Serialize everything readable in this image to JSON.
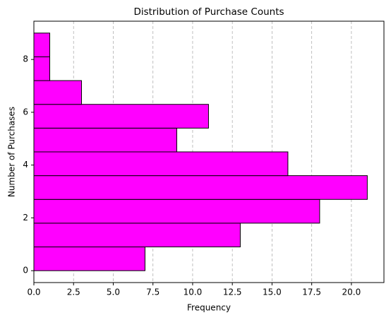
{
  "chart_data": {
    "type": "histogram",
    "orientation": "horizontal",
    "title": "Distribution of Purchase Counts",
    "xlabel": "Frequency",
    "ylabel": "Number of Purchases",
    "bins": [
      0,
      0.9,
      1.8,
      2.7,
      3.6,
      4.5,
      5.4,
      6.3,
      7.2,
      8.1,
      9.0
    ],
    "values": [
      7,
      13,
      18,
      21,
      16,
      9,
      11,
      3,
      1,
      1
    ],
    "color": "#ff00ff",
    "edgecolor": "#000000",
    "xlim": [
      0,
      22.05
    ],
    "ylim": [
      -0.45,
      9.45
    ],
    "xticks": [
      {
        "value": 0,
        "label": "0.0"
      },
      2.5,
      {
        "value": 5,
        "label": "5.0"
      },
      7.5,
      {
        "value": 10,
        "label": "10.0"
      },
      12.5,
      {
        "value": 15,
        "label": "15.0"
      },
      17.5,
      {
        "value": 20,
        "label": "20.0"
      }
    ],
    "yticks": [
      0,
      2,
      4,
      6,
      8
    ],
    "grid": "x"
  }
}
